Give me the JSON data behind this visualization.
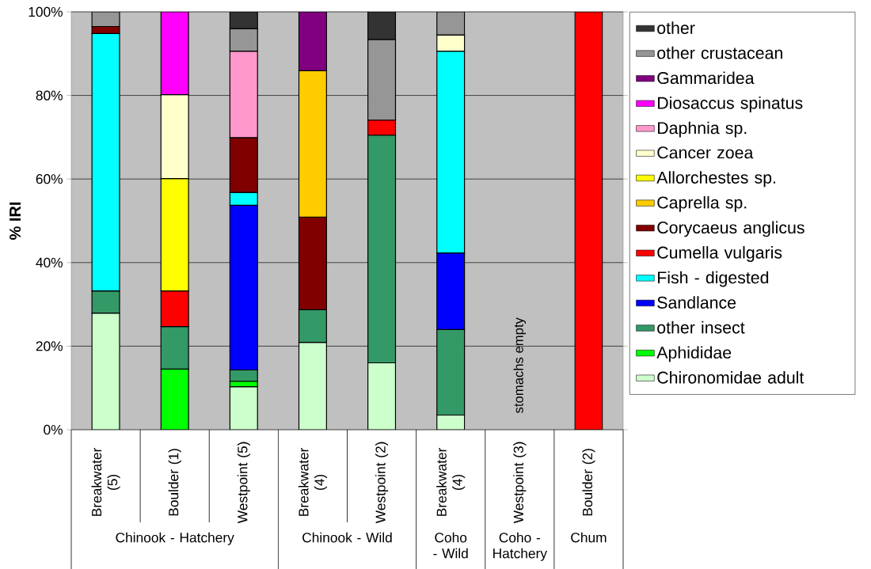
{
  "chart_data": {
    "type": "bar",
    "stacked": true,
    "ylabel": "% IRI",
    "categories": [
      "Breakwater (5)",
      "Boulder (1)",
      "Westpoint (5)",
      "Breakwater (4)",
      "Westpoint (2)",
      "Breakwater (4)",
      "Westpoint (3)",
      "Boulder (2)"
    ],
    "ylim": [
      0,
      100
    ],
    "yticks": [
      {
        "value": 0,
        "label": "0%"
      },
      {
        "value": 20,
        "label": "20%"
      },
      {
        "value": 40,
        "label": "40%"
      },
      {
        "value": 60,
        "label": "60%"
      },
      {
        "value": 80,
        "label": "80%"
      },
      {
        "value": 100,
        "label": "100%"
      }
    ],
    "grid": "y",
    "legend": "right",
    "annotations": [
      "Chinook - Hatchery",
      "Chinook - Wild",
      "Coho - Wild",
      "Coho - Hatchery",
      "Chum",
      "stomachs empty"
    ],
    "series": [
      {
        "name": "Chironomidae adult",
        "color": "#ccffcc",
        "values": [
          27.9,
          null,
          10.3,
          20.9,
          16.0,
          3.5,
          null,
          null
        ]
      },
      {
        "name": "Aphididae",
        "color": "#00ff00",
        "values": [
          null,
          14.5,
          1.3,
          null,
          null,
          null,
          null,
          null
        ]
      },
      {
        "name": "other insect",
        "color": "#339966",
        "values": [
          5.3,
          10.2,
          2.7,
          7.8,
          54.5,
          20.5,
          null,
          null
        ]
      },
      {
        "name": "Sandlance",
        "color": "#0000ff",
        "values": [
          null,
          null,
          39.4,
          null,
          null,
          18.3,
          null,
          null
        ]
      },
      {
        "name": "Fish - digested",
        "color": "#00ffff",
        "values": [
          61.6,
          null,
          3.1,
          null,
          null,
          48.3,
          null,
          null
        ]
      },
      {
        "name": "Cumella vulgaris",
        "color": "#ff0000",
        "values": [
          null,
          8.5,
          null,
          null,
          3.6,
          null,
          null,
          100
        ]
      },
      {
        "name": "Corycaeus anglicus",
        "color": "#800000",
        "values": [
          1.7,
          null,
          13.1,
          22.2,
          null,
          null,
          null,
          null
        ]
      },
      {
        "name": "Caprella sp.",
        "color": "#ffcc00",
        "values": [
          null,
          null,
          null,
          35.0,
          null,
          null,
          null,
          null
        ]
      },
      {
        "name": "Allorchestes sp.",
        "color": "#ffff00",
        "values": [
          null,
          26.9,
          null,
          null,
          null,
          null,
          null,
          null
        ]
      },
      {
        "name": "Cancer zoea",
        "color": "#ffffcc",
        "values": [
          null,
          20.1,
          null,
          null,
          null,
          3.9,
          null,
          null
        ]
      },
      {
        "name": "Daphnia sp.",
        "color": "#ff99cc",
        "values": [
          null,
          null,
          20.7,
          null,
          null,
          null,
          null,
          null
        ]
      },
      {
        "name": "Diosaccus spinatus",
        "color": "#ff00ff",
        "values": [
          null,
          19.8,
          null,
          null,
          null,
          null,
          null,
          null
        ]
      },
      {
        "name": "Gammaridea",
        "color": "#800080",
        "values": [
          null,
          null,
          null,
          14.1,
          null,
          null,
          null,
          null
        ]
      },
      {
        "name": "other crustacean",
        "color": "#969696",
        "values": [
          3.5,
          null,
          5.4,
          null,
          19.3,
          5.5,
          null,
          null
        ]
      },
      {
        "name": "other",
        "color": "#333333",
        "values": [
          null,
          null,
          4.0,
          null,
          6.6,
          null,
          null,
          null
        ]
      }
    ]
  }
}
